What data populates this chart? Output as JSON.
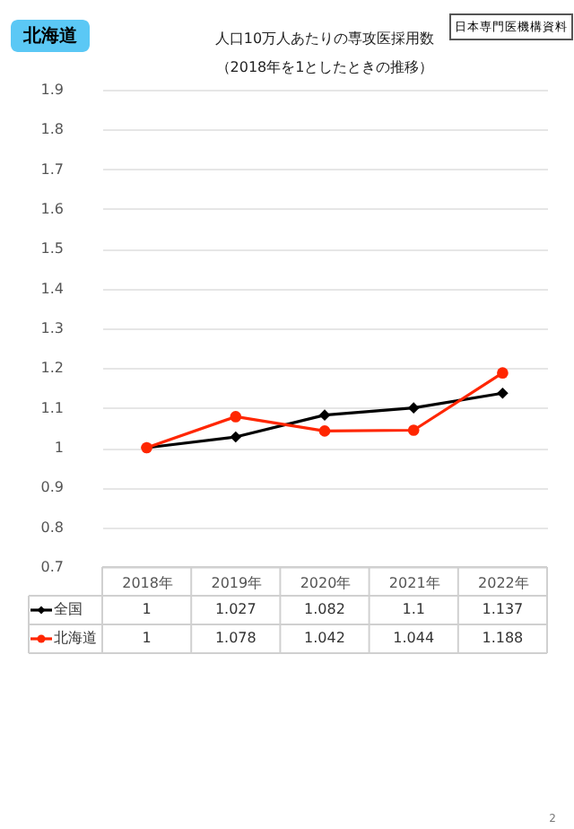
{
  "chart_data": {
    "type": "line",
    "title": [
      "人口10万人あたりの専攻医採用数",
      "（2018年を1としたときの推移）"
    ],
    "categories": [
      "2018年",
      "2019年",
      "2020年",
      "2021年",
      "2022年"
    ],
    "series": [
      {
        "name": "全国",
        "color": "#000000",
        "marker": "diamond",
        "values": [
          1,
          1.027,
          1.082,
          1.1,
          1.137
        ]
      },
      {
        "name": "北海道",
        "color": "#ff2600",
        "marker": "circle",
        "values": [
          1,
          1.078,
          1.042,
          1.044,
          1.188
        ]
      }
    ],
    "ylim": [
      0.7,
      1.9
    ],
    "yticks": [
      0.7,
      0.8,
      0.9,
      1,
      1.1,
      1.2,
      1.3,
      1.4,
      1.5,
      1.6,
      1.7,
      1.8,
      1.9
    ],
    "grid": "y",
    "legend": "bottom",
    "data_labels": true,
    "line_style": "solid",
    "annotations": [
      "北海道",
      "日本専門医機構資料",
      "2"
    ]
  }
}
